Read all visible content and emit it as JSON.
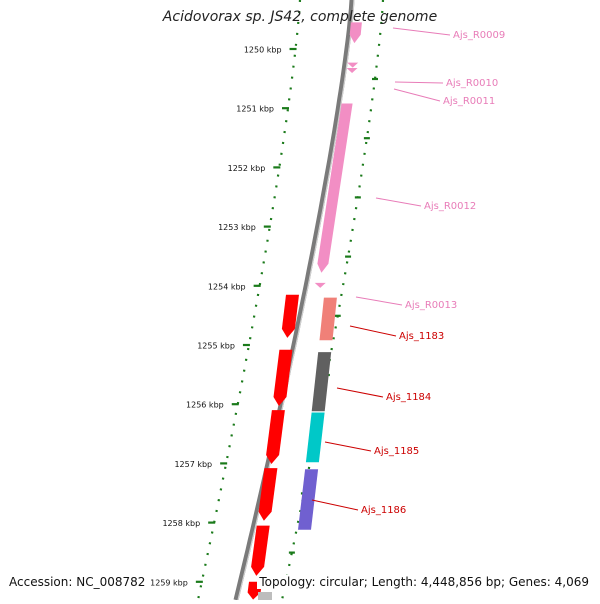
{
  "title": "Acidovorax sp. JS42, complete genome",
  "footer": {
    "accession": "Accession: NC_008782",
    "summary": "Topology: circular; Length: 4,448,856 bp; Genes: 4,069"
  },
  "colors": {
    "backbone": "#7a7a7a",
    "ticks": "#1a7a1a",
    "rna": "#f28ec4",
    "rna_label": "#e87cb8",
    "cds_red": "#ff0000",
    "cds_label": "#cc0000",
    "salmon": "#f08078",
    "gray": "#606060",
    "cyan": "#00c8c8",
    "purple": "#7060d0"
  },
  "scale": {
    "ticks": [
      {
        "kbp": 1250,
        "label": "1250 kbp"
      },
      {
        "kbp": 1251,
        "label": "1251 kbp"
      },
      {
        "kbp": 1252,
        "label": "1252 kbp"
      },
      {
        "kbp": 1253,
        "label": "1253 kbp"
      },
      {
        "kbp": 1254,
        "label": "1254 kbp"
      },
      {
        "kbp": 1255,
        "label": "1255 kbp"
      },
      {
        "kbp": 1256,
        "label": "1256 kbp"
      },
      {
        "kbp": 1257,
        "label": "1257 kbp"
      },
      {
        "kbp": 1258,
        "label": "1258 kbp"
      },
      {
        "kbp": 1259,
        "label": "1259 kbp"
      }
    ]
  },
  "features": [
    {
      "name": "Ajs_R0009",
      "type": "rna",
      "track": "rna",
      "start_kbp": 1249.55,
      "end_kbp": 1249.9
    },
    {
      "name": "Ajs_R0010",
      "type": "rna",
      "track": "rna",
      "start_kbp": 1250.23,
      "end_kbp": 1250.3
    },
    {
      "name": "Ajs_R0011",
      "type": "rna",
      "track": "rna",
      "start_kbp": 1250.32,
      "end_kbp": 1250.39
    },
    {
      "name": "Ajs_R0012",
      "type": "rna",
      "track": "rna",
      "start_kbp": 1250.92,
      "end_kbp": 1253.78
    },
    {
      "name": "Ajs_R0013",
      "type": "rna",
      "track": "rna",
      "start_kbp": 1253.95,
      "end_kbp": 1254.05
    },
    {
      "name": "Ajs_1183",
      "type": "cds",
      "track": "gene",
      "color": "salmon",
      "start_kbp": 1254.2,
      "end_kbp": 1254.92
    },
    {
      "name": "Ajs_1184",
      "type": "cds",
      "track": "gene",
      "color": "gray",
      "start_kbp": 1255.12,
      "end_kbp": 1256.12
    },
    {
      "name": "Ajs_1185",
      "type": "cds",
      "track": "gene",
      "color": "cyan",
      "start_kbp": 1256.14,
      "end_kbp": 1256.98
    },
    {
      "name": "Ajs_1186",
      "type": "cds",
      "track": "gene",
      "color": "purple",
      "start_kbp": 1257.1,
      "end_kbp": 1258.12
    }
  ],
  "orfs": [
    {
      "start_kbp": 1254.15,
      "end_kbp": 1254.88
    },
    {
      "start_kbp": 1255.08,
      "end_kbp": 1256.03
    },
    {
      "start_kbp": 1256.1,
      "end_kbp": 1257.01
    },
    {
      "start_kbp": 1257.08,
      "end_kbp": 1257.97
    },
    {
      "start_kbp": 1258.05,
      "end_kbp": 1258.9
    },
    {
      "start_kbp": 1259.0,
      "end_kbp": 1259.3
    }
  ]
}
